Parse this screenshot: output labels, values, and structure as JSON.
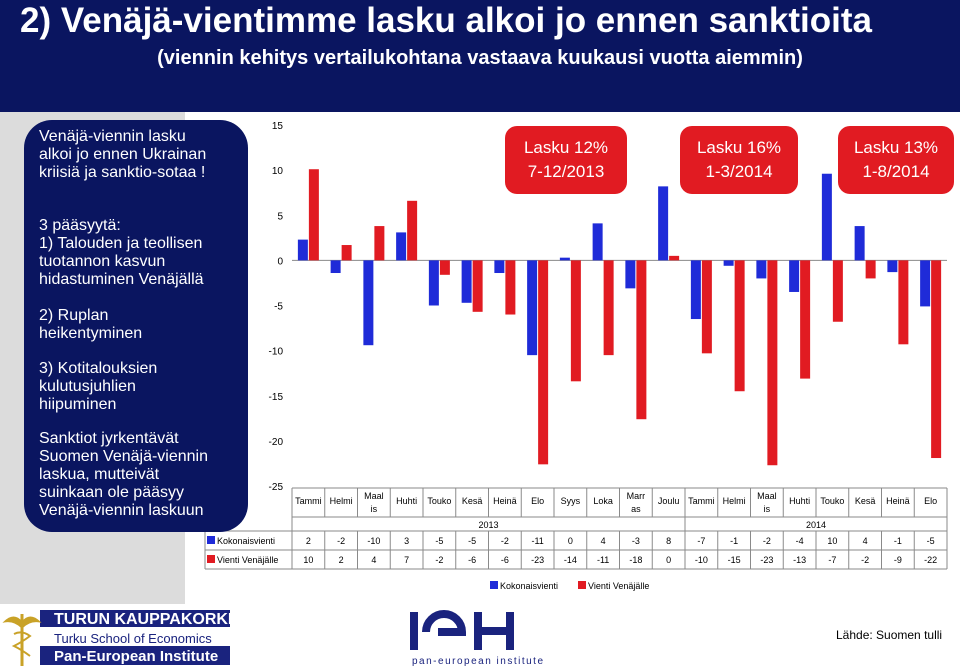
{
  "header": {
    "title": "2) Venäjä-vientimme lasku alkoi jo ennen sanktioita",
    "subtitle": "(viennin kehitys vertailukohtana vastaava kuukausi vuotta aiemmin)"
  },
  "sidebar": {
    "p1": [
      "Venäjä-viennin lasku",
      "alkoi jo ennen Ukrainan",
      "kriisiä ja sanktio-sotaa !"
    ],
    "p2": [
      "3 pääsyytä:",
      "1) Talouden ja teollisen",
      "tuotannon kasvun",
      "hidastuminen Venäjällä"
    ],
    "p3": [
      "2) Ruplan",
      "heikentyminen"
    ],
    "p4": [
      "3) Kotitalouksien",
      "kulutusjuhlien",
      "hiipuminen"
    ],
    "p5": [
      "Sanktiot jyrkentävät",
      "Suomen Venäjä-viennin",
      "laskua, mutteivät",
      "suinkaan ole pääsyy",
      "Venäjä-viennin laskuun"
    ]
  },
  "callouts": [
    {
      "line1": "Lasku 12%",
      "line2": "7-12/2013"
    },
    {
      "line1": "Lasku 16%",
      "line2": "1-3/2014"
    },
    {
      "line1": "Lasku 13%",
      "line2": "1-8/2014"
    }
  ],
  "chart_data": {
    "type": "bar",
    "categories": [
      "Tammi",
      "Helmi",
      "Maalis",
      "Huhti",
      "Touko",
      "Kesä",
      "Heinä",
      "Elo",
      "Syys",
      "Loka",
      "Marras",
      "Joulu",
      "Tammi",
      "Helmi",
      "Maalis",
      "Huhti",
      "Touko",
      "Kesä",
      "Heinä",
      "Elo"
    ],
    "years": [
      {
        "label": "2013",
        "span": 12
      },
      {
        "label": "2014",
        "span": 8
      }
    ],
    "series": [
      {
        "name": "Kokonaisvienti",
        "color": "#1f2bd8",
        "values": [
          2,
          -2,
          -10,
          3,
          -5,
          -5,
          -2,
          -11,
          0,
          4,
          -3,
          8,
          -7,
          -1,
          -2,
          -4,
          10,
          4,
          -1,
          -5
        ],
        "bars": [
          2.3,
          -1.4,
          -9.4,
          3.1,
          -5.0,
          -4.7,
          -1.4,
          -10.5,
          0.3,
          4.1,
          -3.1,
          8.2,
          -6.5,
          -0.6,
          -2.0,
          -3.5,
          9.6,
          3.8,
          -1.3,
          -5.1
        ]
      },
      {
        "name": "Vienti Venäjälle",
        "color": "#e11b22",
        "values": [
          10,
          2,
          4,
          7,
          -2,
          -6,
          -6,
          -23,
          -14,
          -11,
          -18,
          0,
          -10,
          -15,
          -23,
          -13,
          -7,
          -2,
          -9,
          -22
        ],
        "bars": [
          10.1,
          1.7,
          3.8,
          6.6,
          -1.6,
          -5.7,
          -6.0,
          -22.6,
          -13.4,
          -10.5,
          -17.6,
          0.5,
          -10.3,
          -14.5,
          -22.7,
          -13.1,
          -6.8,
          -2.0,
          -9.3,
          -21.9
        ]
      }
    ],
    "ylim": [
      -25,
      15
    ],
    "yticks": [
      15,
      10,
      5,
      0,
      -5,
      -10,
      -15,
      -20,
      -25
    ],
    "legend": "bottom"
  },
  "footer": {
    "tse_name": "TURUN KAUPPAKORKEAKOULU",
    "tse_en": "Turku School of Economics",
    "pei": "Pan-European Institute",
    "pei_small": "pan-european institute",
    "source": "Lähde: Suomen tulli"
  }
}
